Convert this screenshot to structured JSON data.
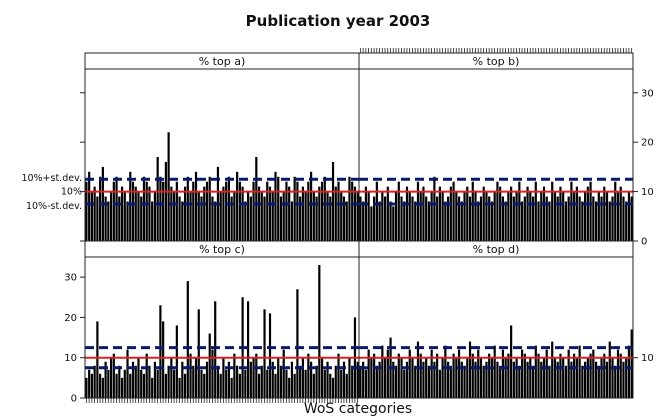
{
  "chart_data": {
    "type": "bar",
    "title": "Publication year 2003",
    "xlabel": "WoS categories",
    "ylabel": "",
    "ylim": [
      0,
      34
    ],
    "yticks": [
      0,
      10,
      20,
      30
    ],
    "grid": false,
    "layout": "2x2 faceted panels",
    "reference_lines": [
      {
        "label": "10%+st.dev.",
        "value": 12.5,
        "color": "#0a1a6b",
        "style": "dashed"
      },
      {
        "label": "10%",
        "value": 10,
        "color": "#e02020",
        "style": "solid"
      },
      {
        "label": "10%-st.dev.",
        "value": 7.5,
        "color": "#0a1a6b",
        "style": "dashed"
      }
    ],
    "panels": [
      {
        "id": "a",
        "label": "% top a)",
        "axis_side": "left",
        "show_tick_labels": false,
        "ref_labels": true,
        "values": [
          12,
          14,
          10,
          11,
          9,
          13,
          15,
          9,
          8,
          10,
          12,
          13,
          9,
          11,
          10,
          8,
          14,
          12,
          11,
          10,
          9,
          13,
          12,
          11,
          8,
          10,
          17,
          13,
          12,
          16,
          22,
          11,
          10,
          12,
          9,
          8,
          11,
          13,
          10,
          12,
          14,
          10,
          9,
          11,
          12,
          13,
          9,
          8,
          15,
          10,
          11,
          12,
          13,
          9,
          10,
          14,
          12,
          11,
          8,
          10,
          9,
          12,
          17,
          11,
          10,
          9,
          12,
          11,
          10,
          14,
          13,
          9,
          10,
          12,
          11,
          8,
          13,
          12,
          9,
          11,
          10,
          12,
          14,
          10,
          9,
          11,
          12,
          13,
          10,
          9,
          16,
          11,
          12,
          10,
          9,
          8,
          13,
          12,
          11,
          10
        ]
      },
      {
        "id": "b",
        "label": "% top b)",
        "axis_side": "right",
        "show_tick_labels": true,
        "ref_labels": false,
        "values": [
          9,
          8,
          11,
          10,
          7,
          9,
          12,
          8,
          10,
          9,
          11,
          8,
          7,
          10,
          12,
          9,
          8,
          11,
          10,
          9,
          8,
          12,
          10,
          11,
          9,
          8,
          10,
          13,
          9,
          11,
          10,
          8,
          9,
          11,
          12,
          10,
          9,
          8,
          10,
          11,
          9,
          12,
          10,
          8,
          9,
          11,
          10,
          9,
          8,
          10,
          12,
          11,
          9,
          8,
          10,
          11,
          9,
          10,
          12,
          8,
          9,
          11,
          10,
          9,
          12,
          8,
          10,
          11,
          9,
          8,
          12,
          10,
          9,
          11,
          10,
          8,
          9,
          12,
          10,
          11,
          9,
          8,
          10,
          11,
          12,
          9,
          8,
          10,
          9,
          11,
          10,
          8,
          9,
          12,
          10,
          11,
          9,
          8,
          10,
          9
        ]
      },
      {
        "id": "c",
        "label": "% top c)",
        "axis_side": "left",
        "show_tick_labels": true,
        "ref_labels": false,
        "values": [
          5,
          7,
          6,
          8,
          19,
          6,
          5,
          9,
          7,
          10,
          11,
          6,
          8,
          5,
          7,
          12,
          6,
          9,
          8,
          10,
          7,
          6,
          11,
          8,
          5,
          9,
          7,
          23,
          19,
          6,
          8,
          10,
          7,
          18,
          5,
          9,
          6,
          29,
          11,
          8,
          10,
          22,
          7,
          6,
          9,
          16,
          12,
          24,
          8,
          6,
          10,
          7,
          9,
          5,
          11,
          8,
          6,
          25,
          7,
          24,
          9,
          10,
          11,
          6,
          8,
          22,
          7,
          21,
          9,
          6,
          10,
          8,
          12,
          7,
          5,
          9,
          6,
          27,
          8,
          10,
          7,
          11,
          9,
          6,
          8,
          33,
          10,
          7,
          9,
          6,
          5,
          8,
          11,
          7,
          9,
          6,
          10,
          8,
          20,
          9
        ]
      },
      {
        "id": "d",
        "label": "% top d)",
        "axis_side": "right",
        "show_tick_labels": true,
        "ref_labels": false,
        "yticks_shown": [
          10
        ],
        "values": [
          8,
          9,
          7,
          12,
          10,
          11,
          8,
          9,
          13,
          10,
          12,
          15,
          9,
          8,
          11,
          10,
          7,
          9,
          12,
          10,
          8,
          14,
          11,
          9,
          10,
          8,
          12,
          9,
          11,
          7,
          10,
          13,
          9,
          8,
          11,
          10,
          12,
          9,
          8,
          10,
          14,
          11,
          9,
          12,
          10,
          8,
          9,
          11,
          10,
          13,
          9,
          8,
          12,
          10,
          11,
          18,
          9,
          10,
          8,
          12,
          11,
          9,
          10,
          8,
          13,
          11,
          9,
          10,
          12,
          8,
          14,
          10,
          9,
          11,
          10,
          8,
          12,
          9,
          11,
          10,
          13,
          8,
          9,
          10,
          11,
          12,
          9,
          8,
          10,
          11,
          9,
          14,
          10,
          8,
          12,
          11,
          9,
          10,
          13,
          17
        ]
      }
    ]
  }
}
